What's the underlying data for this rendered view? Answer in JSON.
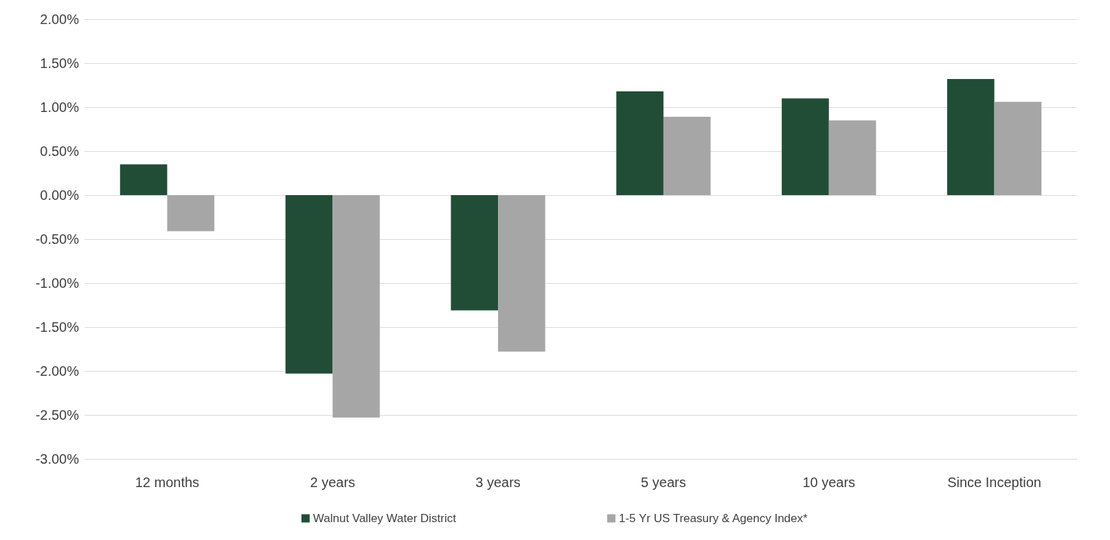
{
  "chart_data": {
    "type": "bar",
    "categories": [
      "12 months",
      "2 years",
      "3 years",
      "5 years",
      "10 years",
      "Since Inception"
    ],
    "series": [
      {
        "name": "Walnut Valley Water District",
        "color": "#214d37",
        "values": [
          0.35,
          -2.03,
          -1.31,
          1.18,
          1.1,
          1.32
        ]
      },
      {
        "name": "1-5 Yr US Treasury & Agency Index*",
        "color": "#a6a6a6",
        "values": [
          -0.41,
          -2.53,
          -1.78,
          0.89,
          0.85,
          1.06
        ]
      }
    ],
    "ylim": [
      -3,
      2
    ],
    "yticks": [
      {
        "value": -3,
        "label": "-3.00%"
      },
      {
        "value": -2.5,
        "label": "-2.50%"
      },
      {
        "value": -2,
        "label": "-2.00%"
      },
      {
        "value": -1.5,
        "label": "-1.50%"
      },
      {
        "value": -1,
        "label": "-1.00%"
      },
      {
        "value": -0.5,
        "label": "-0.50%"
      },
      {
        "value": 0,
        "label": "0.00%"
      },
      {
        "value": 0.5,
        "label": "0.50%"
      },
      {
        "value": 1,
        "label": "1.00%"
      },
      {
        "value": 1.5,
        "label": "1.50%"
      },
      {
        "value": 2,
        "label": "2.00%"
      }
    ],
    "grid": "y",
    "legend": "bottom"
  }
}
